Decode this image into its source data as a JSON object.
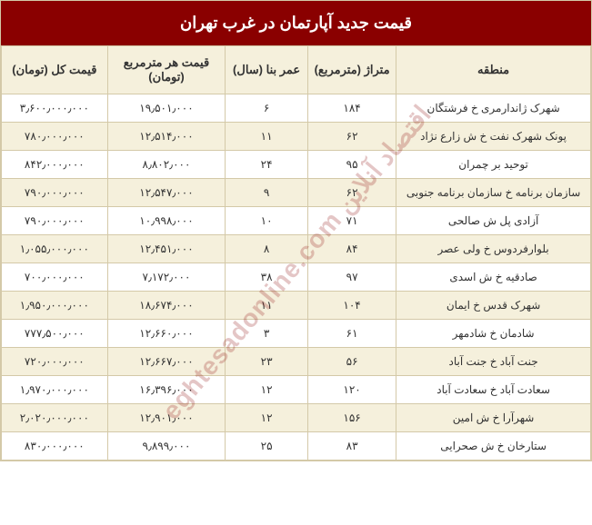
{
  "title": "قیمت جدید آپارتمان در غرب تهران",
  "watermark": "اقتصاد آنلاین  eghtesadonline.com",
  "headers": {
    "region": "منطقه",
    "area": "متراژ (مترمربع)",
    "age": "عمر بنا (سال)",
    "price_per_meter": "قیمت هر مترمربع (تومان)",
    "total_price": "قیمت کل (تومان)"
  },
  "columns": {
    "region_width": "33%",
    "area_width": "15%",
    "age_width": "14%",
    "ppm_width": "20%",
    "total_width": "18%"
  },
  "colors": {
    "header_bg": "#8a0000",
    "header_text": "#ffffff",
    "row_alt_bg": "#f5f0dc",
    "row_bg": "#ffffff",
    "border": "#d4c9a8",
    "cell_text": "#333333",
    "watermark": "#8a0000"
  },
  "typography": {
    "title_fontsize": 18,
    "header_fontsize": 13,
    "cell_fontsize": 12,
    "font_family": "Tahoma"
  },
  "rows": [
    {
      "region": "شهرک ژاندارمری خ فرشتگان",
      "area": "۱۸۴",
      "age": "۶",
      "ppm": "۱۹٫۵۰۱٫۰۰۰",
      "total": "۳٫۶۰۰٫۰۰۰٫۰۰۰"
    },
    {
      "region": "پونک شهرک نفت خ ش زارع نژاد",
      "area": "۶۲",
      "age": "۱۱",
      "ppm": "۱۲٫۵۱۴٫۰۰۰",
      "total": "۷۸۰٫۰۰۰٫۰۰۰"
    },
    {
      "region": "توحید بر چمران",
      "area": "۹۵",
      "age": "۲۴",
      "ppm": "۸٫۸۰۲٫۰۰۰",
      "total": "۸۴۲٫۰۰۰٫۰۰۰"
    },
    {
      "region": "سازمان برنامه خ سازمان برنامه جنوبی",
      "area": "۶۲",
      "age": "۹",
      "ppm": "۱۲٫۵۴۷٫۰۰۰",
      "total": "۷۹۰٫۰۰۰٫۰۰۰"
    },
    {
      "region": "آزادی پل ش صالحی",
      "area": "۷۱",
      "age": "۱۰",
      "ppm": "۱۰٫۹۹۸٫۰۰۰",
      "total": "۷۹۰٫۰۰۰٫۰۰۰"
    },
    {
      "region": "بلوارفردوس خ ولی عصر",
      "area": "۸۴",
      "age": "۸",
      "ppm": "۱۲٫۴۵۱٫۰۰۰",
      "total": "۱٫۰۵۵٫۰۰۰٫۰۰۰"
    },
    {
      "region": "صادقیه خ ش اسدی",
      "area": "۹۷",
      "age": "۳۸",
      "ppm": "۷٫۱۷۲٫۰۰۰",
      "total": "۷۰۰٫۰۰۰٫۰۰۰"
    },
    {
      "region": "شهرک قدس خ ایمان",
      "area": "۱۰۴",
      "age": "۱۱",
      "ppm": "۱۸٫۶۷۴٫۰۰۰",
      "total": "۱٫۹۵۰٫۰۰۰٫۰۰۰"
    },
    {
      "region": "شادمان خ شادمهر",
      "area": "۶۱",
      "age": "۳",
      "ppm": "۱۲٫۶۶۰٫۰۰۰",
      "total": "۷۷۷٫۵۰۰٫۰۰۰"
    },
    {
      "region": "جنت آباد خ جنت آباد",
      "area": "۵۶",
      "age": "۲۳",
      "ppm": "۱۲٫۶۶۷٫۰۰۰",
      "total": "۷۲۰٫۰۰۰٫۰۰۰"
    },
    {
      "region": "سعادت آباد خ سعادت آباد",
      "area": "۱۲۰",
      "age": "۱۲",
      "ppm": "۱۶٫۳۹۶٫۰۰۰",
      "total": "۱٫۹۷۰٫۰۰۰٫۰۰۰"
    },
    {
      "region": "شهرآرا خ ش امین",
      "area": "۱۵۶",
      "age": "۱۲",
      "ppm": "۱۲٫۹۰۱٫۰۰۰",
      "total": "۲٫۰۲۰٫۰۰۰٫۰۰۰"
    },
    {
      "region": "ستارخان خ ش صحرایی",
      "area": "۸۳",
      "age": "۲۵",
      "ppm": "۹٫۸۹۹٫۰۰۰",
      "total": "۸۳۰٫۰۰۰٫۰۰۰"
    }
  ]
}
